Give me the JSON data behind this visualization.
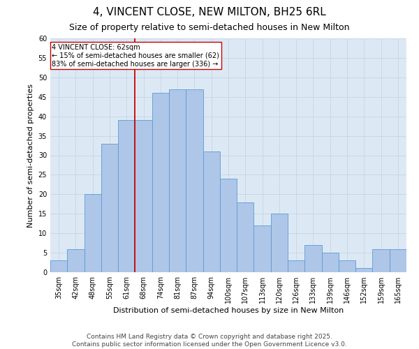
{
  "title": "4, VINCENT CLOSE, NEW MILTON, BH25 6RL",
  "subtitle": "Size of property relative to semi-detached houses in New Milton",
  "xlabel": "Distribution of semi-detached houses by size in New Milton",
  "ylabel": "Number of semi-detached properties",
  "categories": [
    "35sqm",
    "42sqm",
    "48sqm",
    "55sqm",
    "61sqm",
    "68sqm",
    "74sqm",
    "81sqm",
    "87sqm",
    "94sqm",
    "100sqm",
    "107sqm",
    "113sqm",
    "120sqm",
    "126sqm",
    "133sqm",
    "139sqm",
    "146sqm",
    "152sqm",
    "159sqm",
    "165sqm"
  ],
  "values": [
    3,
    6,
    20,
    33,
    39,
    39,
    46,
    47,
    47,
    31,
    24,
    18,
    12,
    15,
    3,
    7,
    5,
    3,
    1,
    6,
    6
  ],
  "bar_color": "#aec6e8",
  "bar_edge_color": "#5b9bd5",
  "highlight_index": 4,
  "red_line_color": "#cc0000",
  "annotation_text": "4 VINCENT CLOSE: 62sqm\n← 15% of semi-detached houses are smaller (62)\n83% of semi-detached houses are larger (336) →",
  "annotation_box_color": "#ffffff",
  "annotation_box_edge_color": "#cc0000",
  "ylim": [
    0,
    60
  ],
  "yticks": [
    0,
    5,
    10,
    15,
    20,
    25,
    30,
    35,
    40,
    45,
    50,
    55,
    60
  ],
  "grid_color": "#c8d8e8",
  "background_color": "#dce9f5",
  "footer_text": "Contains HM Land Registry data © Crown copyright and database right 2025.\nContains public sector information licensed under the Open Government Licence v3.0.",
  "title_fontsize": 11,
  "subtitle_fontsize": 9,
  "axis_label_fontsize": 8,
  "tick_fontsize": 7,
  "footer_fontsize": 6.5
}
